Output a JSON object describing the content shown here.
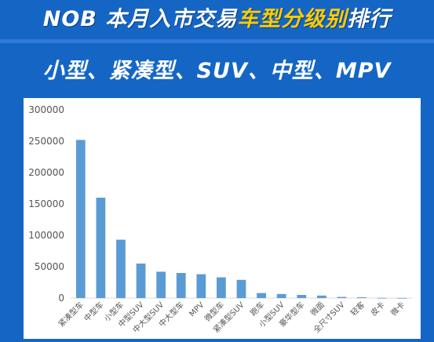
{
  "header": {
    "title_prefix": "NOB 本月入市交易",
    "title_highlight": "车型分级别",
    "title_suffix": "排行",
    "subtitle": "小型、紧凑型、SUV、中型、MPV"
  },
  "colors": {
    "background": "#1566c4",
    "bar": "#5b9bd5",
    "highlight": "#ffcc00"
  },
  "chart_data": {
    "type": "bar",
    "title": "",
    "xlabel": "",
    "ylabel": "",
    "ylim": [
      0,
      300000
    ],
    "yticks": [
      0,
      50000,
      100000,
      150000,
      200000,
      250000,
      300000
    ],
    "ytick_labels": [
      "0",
      "50000",
      "100000",
      "150000",
      "200000",
      "250000",
      "300000"
    ],
    "grid": false,
    "categories": [
      "紧凑型车",
      "中型车",
      "小型车",
      "中型SUV",
      "中大型SUV",
      "中大型车",
      "MPV",
      "微型车",
      "紧凑型SUV",
      "跑车",
      "小型SUV",
      "豪华型车",
      "微面",
      "全尺寸SUV",
      "轻客",
      "皮卡",
      "微卡"
    ],
    "values": [
      252000,
      160000,
      93000,
      55000,
      42000,
      40000,
      38000,
      33000,
      29000,
      8000,
      6500,
      5000,
      4000,
      1800,
      1200,
      300,
      200
    ]
  }
}
